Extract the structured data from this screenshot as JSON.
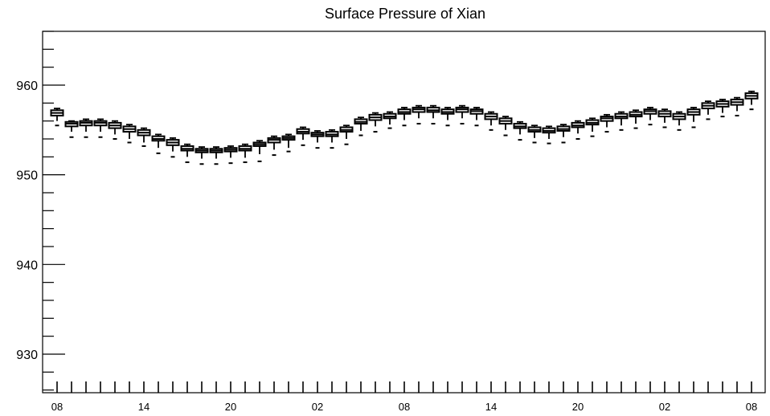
{
  "chart_data": {
    "type": "boxplot",
    "title": "Surface Pressure of Xian",
    "xlabel": "",
    "ylabel": "",
    "ylim": [
      925.7,
      966
    ],
    "y_ticks": [
      930,
      940,
      950,
      960
    ],
    "y_minor_step": 2,
    "x_tick_labels": [
      "08",
      "14",
      "20",
      "02",
      "08",
      "14",
      "20",
      "02",
      "08"
    ],
    "x_tick_every": 6,
    "grid": false,
    "legend": "none",
    "series": [
      {
        "box_q1": [
          956.6,
          955.4,
          955.5,
          955.5,
          955.2,
          954.8,
          954.4,
          953.8,
          953.3,
          952.7,
          952.5,
          952.5,
          952.6,
          952.7,
          953.2,
          953.6,
          953.9,
          954.6,
          954.3,
          954.3,
          954.8,
          955.7,
          956.1,
          956.3,
          956.8,
          957.0,
          957.0,
          956.8,
          957.0,
          956.8,
          956.2,
          955.7,
          955.2,
          954.8,
          954.7,
          954.9,
          955.3,
          955.6,
          956.0,
          956.3,
          956.5,
          956.8,
          956.5,
          956.2,
          956.7,
          957.4,
          957.6,
          957.8,
          958.5
        ],
        "median": [
          956.9,
          955.7,
          955.8,
          955.8,
          955.5,
          955.1,
          954.7,
          954.0,
          953.6,
          952.9,
          952.7,
          952.7,
          952.8,
          952.9,
          953.4,
          953.9,
          954.1,
          954.8,
          954.5,
          954.5,
          955.0,
          955.9,
          956.4,
          956.5,
          957.0,
          957.3,
          957.2,
          957.0,
          957.3,
          957.1,
          956.5,
          956.0,
          955.4,
          955.0,
          954.9,
          955.1,
          955.5,
          955.8,
          956.3,
          956.5,
          956.7,
          957.1,
          956.8,
          956.5,
          957.0,
          957.7,
          957.9,
          958.1,
          958.8
        ],
        "box_q3": [
          957.2,
          955.9,
          956.0,
          956.0,
          955.8,
          955.4,
          955.0,
          954.3,
          953.9,
          953.2,
          952.9,
          952.9,
          953.0,
          953.2,
          953.6,
          954.1,
          954.3,
          955.1,
          954.7,
          954.8,
          955.3,
          956.2,
          956.7,
          956.8,
          957.3,
          957.5,
          957.5,
          957.3,
          957.5,
          957.3,
          956.8,
          956.3,
          955.7,
          955.3,
          955.2,
          955.4,
          955.8,
          956.1,
          956.5,
          956.8,
          957.0,
          957.3,
          957.1,
          956.8,
          957.3,
          958.0,
          958.2,
          958.4,
          959.1
        ],
        "whisker_low": [
          956.0,
          954.8,
          954.8,
          954.8,
          954.5,
          954.0,
          953.6,
          953.0,
          952.6,
          952.0,
          951.8,
          951.8,
          951.9,
          951.9,
          952.3,
          952.8,
          953.0,
          953.9,
          953.6,
          953.6,
          954.0,
          954.9,
          955.4,
          955.6,
          956.1,
          956.3,
          956.3,
          956.1,
          956.3,
          956.1,
          955.5,
          955.0,
          954.5,
          954.1,
          954.0,
          954.2,
          954.6,
          954.8,
          955.3,
          955.5,
          955.7,
          956.1,
          955.8,
          955.5,
          955.9,
          956.7,
          956.9,
          957.1,
          957.8
        ],
        "whisker_high": [
          957.4,
          956.0,
          956.2,
          956.2,
          956.0,
          955.6,
          955.2,
          954.5,
          954.1,
          953.4,
          953.1,
          953.1,
          953.2,
          953.4,
          953.8,
          954.3,
          954.5,
          955.3,
          954.9,
          955.0,
          955.5,
          956.4,
          956.9,
          957.0,
          957.5,
          957.7,
          957.7,
          957.5,
          957.7,
          957.5,
          957.0,
          956.5,
          955.9,
          955.5,
          955.4,
          955.6,
          956.0,
          956.3,
          956.7,
          957.0,
          957.2,
          957.5,
          957.3,
          957.0,
          957.5,
          958.2,
          958.4,
          958.6,
          959.3
        ],
        "outlier_low": [
          955.5,
          954.2,
          954.2,
          954.2,
          954.0,
          953.6,
          953.2,
          952.4,
          952.0,
          951.4,
          951.2,
          951.2,
          951.3,
          951.4,
          951.5,
          952.2,
          952.6,
          953.3,
          953.0,
          953.0,
          953.4,
          954.4,
          954.8,
          955.2,
          955.5,
          955.7,
          955.7,
          955.5,
          955.7,
          955.5,
          955.0,
          954.4,
          953.9,
          953.6,
          953.5,
          953.6,
          954.0,
          954.3,
          954.8,
          955.0,
          955.2,
          955.6,
          955.3,
          955.0,
          955.3,
          956.2,
          956.5,
          956.6,
          957.3
        ]
      }
    ]
  }
}
